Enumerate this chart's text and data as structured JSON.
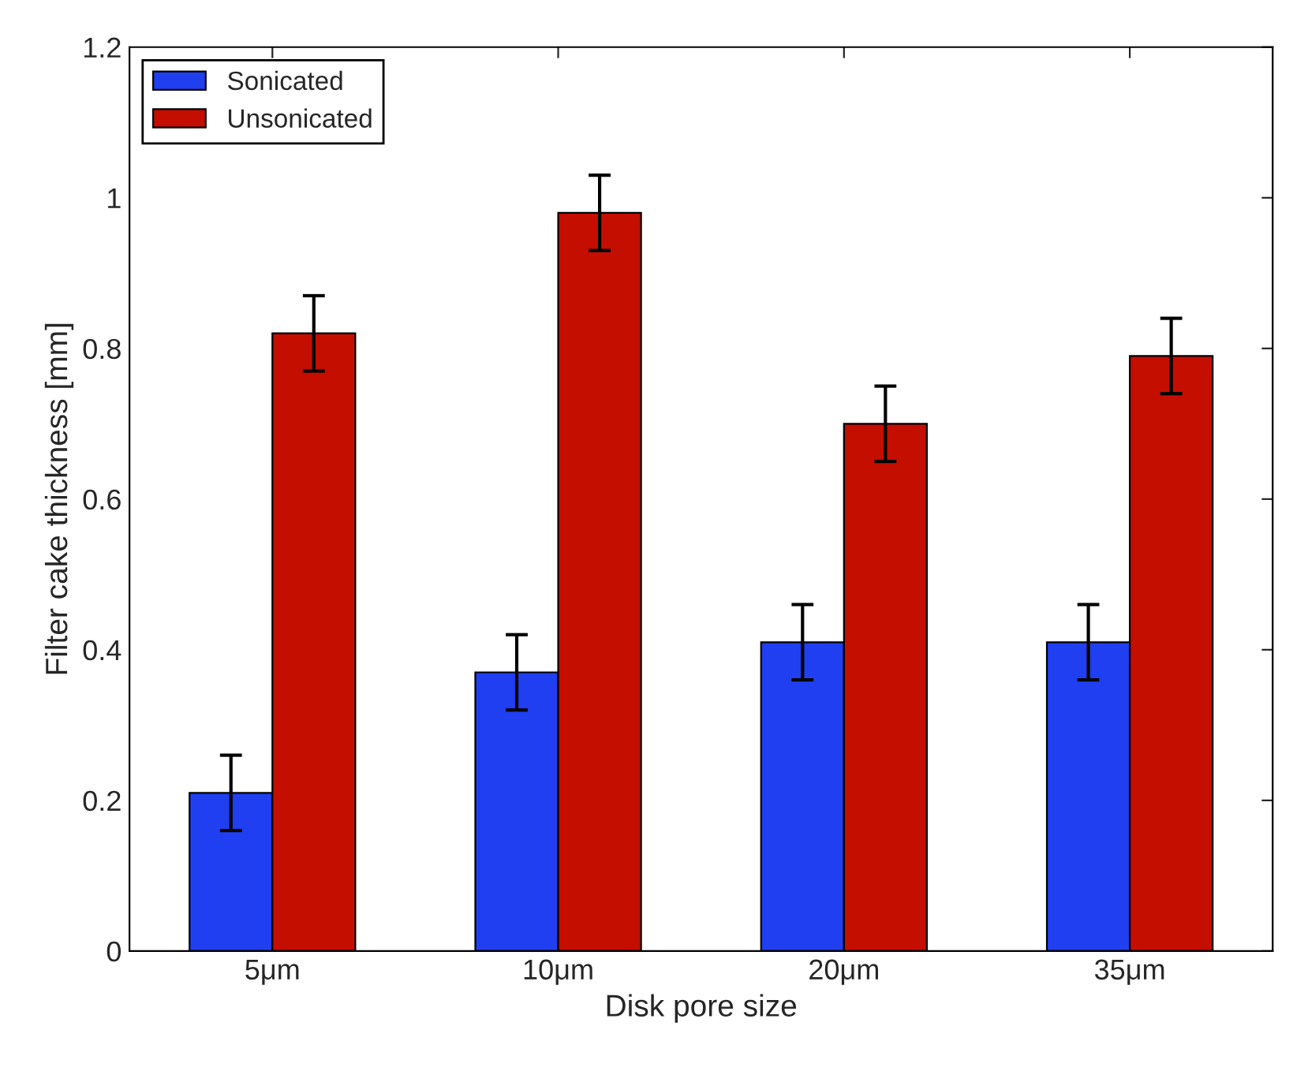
{
  "chart_data": {
    "type": "bar",
    "xlabel": "Disk pore size",
    "ylabel": "Filter cake thickness [mm]",
    "categories": [
      "5μm",
      "10μm",
      "20μm",
      "35μm"
    ],
    "series": [
      {
        "name": "Sonicated",
        "color": "#1f3ff0",
        "values": [
          0.21,
          0.37,
          0.41,
          0.41
        ],
        "errors": [
          0.05,
          0.05,
          0.05,
          0.05
        ]
      },
      {
        "name": "Unsonicated",
        "color": "#c40e00",
        "values": [
          0.82,
          0.98,
          0.7,
          0.79
        ],
        "errors": [
          0.05,
          0.05,
          0.05,
          0.05
        ]
      }
    ],
    "ylim": [
      0,
      1.2
    ],
    "yticks": [
      0,
      0.2,
      0.4,
      0.6,
      0.8,
      1,
      1.2
    ],
    "grid": false,
    "legend": "top left"
  }
}
